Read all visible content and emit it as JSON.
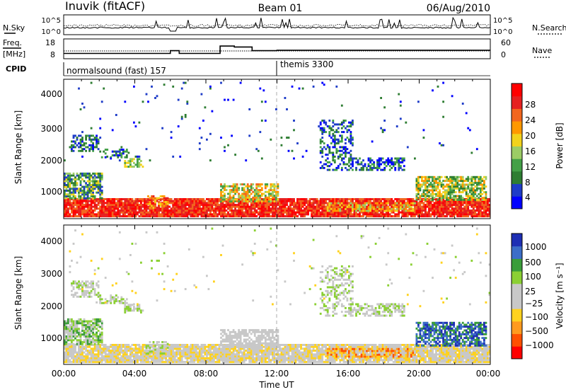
{
  "header": {
    "station": "Inuvik (fitACF)",
    "beam": "Beam 01",
    "date": "06/Aug/2010"
  },
  "labels": {
    "nsky": "N.Sky",
    "nsearch": "N.Search",
    "freq": "Freq.",
    "freq_unit": "[MHz]",
    "nave": "Nave",
    "cpid": "CPID"
  },
  "top_axes": {
    "noise_ticks": [
      "10^5",
      "10^0"
    ],
    "freq_ticks": [
      "18",
      "8"
    ],
    "nave_ticks": [
      "60",
      "0"
    ]
  },
  "cpid_segments": [
    {
      "label": "normalsound (fast) 157",
      "start_hour": 0
    },
    {
      "label": "themis 3300",
      "start_hour": 12
    }
  ],
  "colors": {
    "power": [
      "#0000ff",
      "#1e3cc8",
      "#2e7d32",
      "#43a047",
      "#9ccc65",
      "#f2d21c",
      "#ff9800",
      "#f2661e",
      "#e62020",
      "#ff0000"
    ],
    "velocity": [
      "#ff0000",
      "#ff5000",
      "#ff9a1e",
      "#ffd21e",
      "#c8c8c8",
      "#c8c8c8",
      "#8bd033",
      "#3a9d3a",
      "#3c6ec8",
      "#1e2fb4"
    ]
  },
  "chart_data": [
    {
      "type": "heatmap",
      "name": "power",
      "xlabel": "",
      "ylabel": "Slant Range [km]",
      "x_range_hours": [
        0,
        24
      ],
      "ylim": [
        180,
        4600
      ],
      "y_ticks": [
        "1000",
        "2000",
        "3000",
        "4000"
      ],
      "colorbar_label": "Power [dB]",
      "colorbar_ticks": [
        "4",
        "8",
        "12",
        "16",
        "20",
        "24",
        "28"
      ],
      "colorbar_range": [
        0,
        32
      ]
    },
    {
      "type": "heatmap",
      "name": "velocity",
      "xlabel": "Time UT",
      "ylabel": "Slant Range [km]",
      "x_range_hours": [
        0,
        24
      ],
      "ylim": [
        180,
        4600
      ],
      "x_ticks": [
        "00:00",
        "04:00",
        "08:00",
        "12:00",
        "16:00",
        "20:00",
        "00:00"
      ],
      "y_ticks": [
        "1000",
        "2000",
        "3000",
        "4000"
      ],
      "colorbar_label": "Velocity [m s⁻¹]",
      "colorbar_ticks": [
        "1000",
        "500",
        "100",
        "25",
        "−25",
        "−100",
        "−500",
        "−1000"
      ]
    }
  ]
}
